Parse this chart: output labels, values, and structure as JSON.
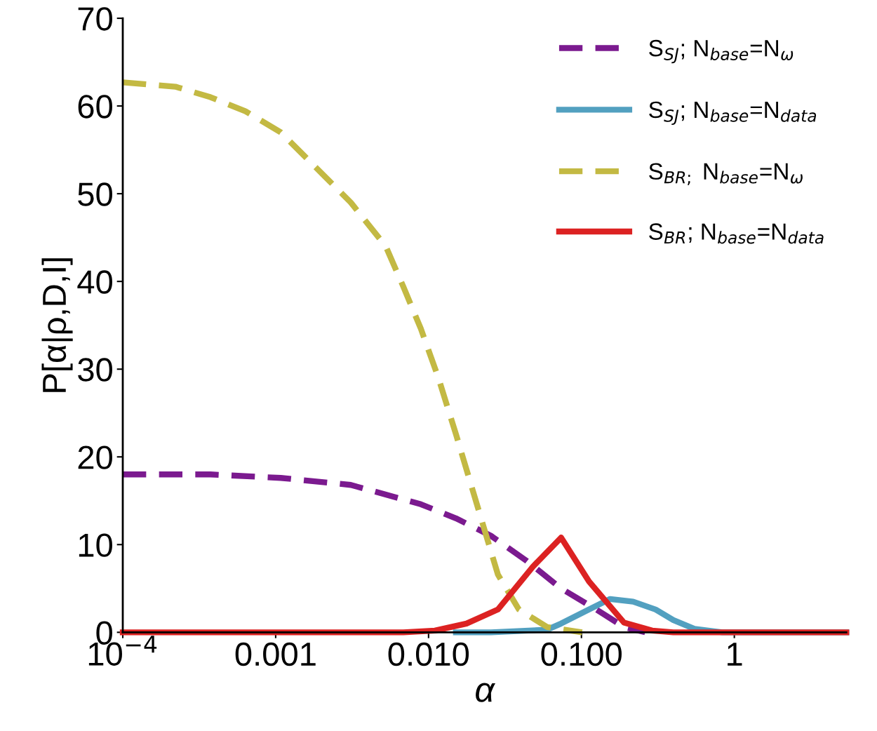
{
  "chart_data": {
    "type": "line",
    "xlabel": "α",
    "ylabel": "P[α|ρ,D,I]",
    "log": "x",
    "xlim": [
      0.0001,
      5.4
    ],
    "xticks": [
      {
        "value": 0.0001,
        "label": "10$^{−4}$"
      },
      {
        "value": 0.001,
        "label": "0.001"
      },
      {
        "value": 0.01,
        "label": "0.010"
      },
      {
        "value": 0.1,
        "label": "0.100"
      },
      {
        "value": 1,
        "label": "1"
      }
    ],
    "ylim": [
      0,
      70
    ],
    "yticks": [
      0,
      10,
      20,
      30,
      40,
      50,
      60,
      70
    ],
    "grid": false,
    "legend": "top right",
    "series": [
      {
        "name": "S$_{SJ}$; N$_{base}$=N$_{ω}$",
        "color": "#7b1a8f",
        "line_style": "dashed",
        "x": [
          0.0001,
          0.000375,
          0.00108,
          0.0031,
          0.00891,
          0.0151,
          0.0256,
          0.0434,
          0.0736,
          0.125,
          0.19,
          0.261
        ],
        "values": [
          18,
          18,
          17.6,
          16.8,
          14.6,
          13,
          11,
          8.2,
          5,
          2.6,
          0.6,
          0
        ]
      },
      {
        "name": "S$_{SJ}$; N$_{base}$=N$_{data}$",
        "color": "#52a0c0",
        "line_style": "solid",
        "x": [
          0.0151,
          0.0256,
          0.0596,
          0.0736,
          0.112,
          0.154,
          0.218,
          0.306,
          0.399,
          0.548,
          0.836,
          5.4
        ],
        "values": [
          0,
          0,
          0.3,
          1,
          2.6,
          3.8,
          3.5,
          2.6,
          1.4,
          0.4,
          0,
          0
        ]
      },
      {
        "name": "S$_{BR;}$ N$_{base}$=N$_{ω}$",
        "color": "#c3b943",
        "line_style": "dashed",
        "x": [
          0.0001,
          0.000221,
          0.000375,
          0.000635,
          0.00108,
          0.00183,
          0.0031,
          0.00525,
          0.00684,
          0.00891,
          0.0116,
          0.0151,
          0.0207,
          0.0284,
          0.039,
          0.0596,
          0.101
        ],
        "values": [
          62.7,
          62.2,
          61,
          59.4,
          57,
          53,
          49,
          44,
          39.4,
          34.6,
          29,
          22.6,
          14.6,
          6.6,
          2.6,
          0.6,
          0
        ]
      },
      {
        "name": "S$_{BR}$; N$_{base}$=N$_{data}$",
        "color": "#dc2222",
        "line_style": "solid",
        "x": [
          0.0001,
          0.00684,
          0.011,
          0.0177,
          0.0284,
          0.0482,
          0.0736,
          0.112,
          0.19,
          0.29,
          0.399,
          5.4
        ],
        "values": [
          0,
          0,
          0.2,
          1,
          2.6,
          7.5,
          10.8,
          5.8,
          1.1,
          0.2,
          0,
          0
        ]
      }
    ]
  }
}
